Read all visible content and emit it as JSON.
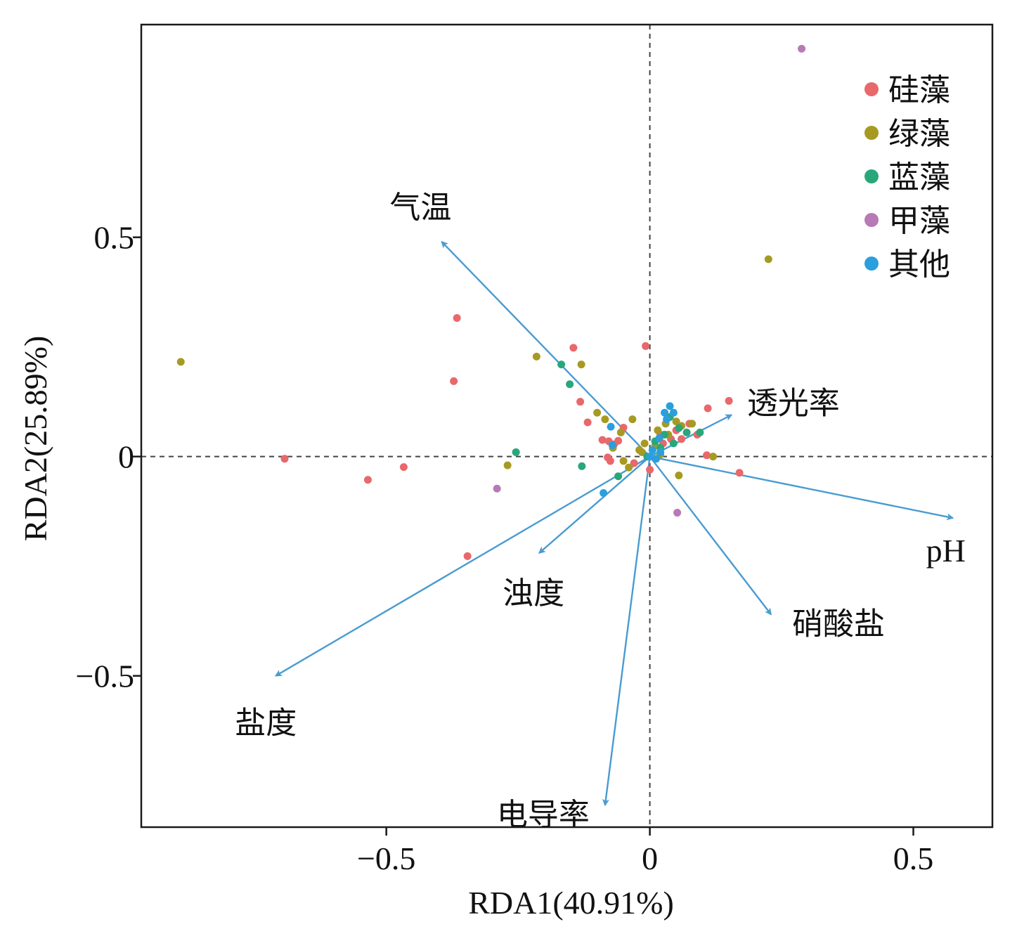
{
  "chart_data": {
    "type": "scatter",
    "xlabel": "RDA1(40.91%)",
    "ylabel": "RDA2(25.89%)",
    "xlim": [
      -0.965,
      0.65
    ],
    "ylim": [
      -0.845,
      0.985
    ],
    "x_ticks": [
      {
        "value": -0.5,
        "label": "−0.5"
      },
      {
        "value": 0,
        "label": "0"
      },
      {
        "value": 0.5,
        "label": "0.5"
      }
    ],
    "y_ticks": [
      {
        "value": 0.5,
        "label": "0.5"
      },
      {
        "value": 0,
        "label": "0"
      },
      {
        "value": -0.5,
        "label": "−0.5"
      }
    ],
    "reference_lines": {
      "x": 0,
      "y": 0,
      "style": "dashed"
    },
    "legend": {
      "placement": "top-right"
    },
    "series": [
      {
        "name": "硅藻",
        "color": "#e8686b",
        "points": [
          [
            -0.693,
            -0.005
          ],
          [
            -0.467,
            -0.024
          ],
          [
            -0.535,
            -0.053
          ],
          [
            -0.366,
            0.316
          ],
          [
            -0.372,
            0.172
          ],
          [
            -0.346,
            -0.227
          ],
          [
            -0.145,
            0.248
          ],
          [
            -0.132,
            0.125
          ],
          [
            -0.118,
            0.078
          ],
          [
            -0.09,
            0.038
          ],
          [
            -0.078,
            0.035
          ],
          [
            -0.068,
            0.028
          ],
          [
            -0.06,
            0.036
          ],
          [
            -0.08,
            -0.002
          ],
          [
            -0.075,
            -0.01
          ],
          [
            -0.05,
            0.066
          ],
          [
            -0.008,
            0.252
          ],
          [
            0.02,
            0.05
          ],
          [
            0.025,
            0.03
          ],
          [
            0.04,
            0.04
          ],
          [
            0.05,
            0.06
          ],
          [
            0.06,
            0.04
          ],
          [
            0.075,
            0.075
          ],
          [
            0.09,
            0.05
          ],
          [
            0.11,
            0.11
          ],
          [
            0.15,
            0.127
          ],
          [
            0.108,
            0.003
          ],
          [
            0.17,
            -0.037
          ],
          [
            -0.03,
            -0.015
          ],
          [
            0.0,
            -0.03
          ]
        ]
      },
      {
        "name": "绿藻",
        "color": "#a69a23",
        "points": [
          [
            -0.89,
            0.216
          ],
          [
            -0.215,
            0.228
          ],
          [
            -0.13,
            0.21
          ],
          [
            -0.1,
            0.1
          ],
          [
            -0.085,
            0.085
          ],
          [
            -0.055,
            0.055
          ],
          [
            -0.07,
            0.02
          ],
          [
            -0.05,
            -0.01
          ],
          [
            -0.033,
            0.085
          ],
          [
            -0.02,
            0.015
          ],
          [
            -0.01,
            0.03
          ],
          [
            0.01,
            0.025
          ],
          [
            0.015,
            0.06
          ],
          [
            0.03,
            0.075
          ],
          [
            0.05,
            0.08
          ],
          [
            0.06,
            0.07
          ],
          [
            0.08,
            0.075
          ],
          [
            0.12,
            0.0
          ],
          [
            0.055,
            -0.043
          ],
          [
            0.225,
            0.45
          ],
          [
            -0.27,
            -0.02
          ],
          [
            -0.04,
            -0.025
          ],
          [
            -0.015,
            0.01
          ],
          [
            0.02,
            0.005
          ],
          [
            0.035,
            0.05
          ]
        ]
      },
      {
        "name": "蓝藻",
        "color": "#2aa77a",
        "points": [
          [
            -0.168,
            0.21
          ],
          [
            -0.152,
            0.165
          ],
          [
            -0.254,
            0.01
          ],
          [
            -0.129,
            -0.022
          ],
          [
            -0.06,
            -0.045
          ],
          [
            0.028,
            0.05
          ],
          [
            0.038,
            0.09
          ],
          [
            0.045,
            0.03
          ],
          [
            0.055,
            0.065
          ],
          [
            0.07,
            0.055
          ],
          [
            0.095,
            0.055
          ],
          [
            0.02,
            0.02
          ],
          [
            0.01,
            0.035
          ],
          [
            -0.005,
            0.0
          ]
        ]
      },
      {
        "name": "甲藻",
        "color": "#b77ab6",
        "points": [
          [
            0.288,
            0.93
          ],
          [
            -0.29,
            -0.073
          ],
          [
            0.052,
            -0.128
          ]
        ]
      },
      {
        "name": "其他",
        "color": "#2b9fdc",
        "points": [
          [
            -0.088,
            -0.083
          ],
          [
            -0.074,
            0.068
          ],
          [
            -0.071,
            0.026
          ],
          [
            0.018,
            0.042
          ],
          [
            0.028,
            0.1
          ],
          [
            0.038,
            0.115
          ],
          [
            0.032,
            0.085
          ],
          [
            0.045,
            0.1
          ],
          [
            0.0,
            0.0
          ],
          [
            0.005,
            0.015
          ],
          [
            0.012,
            -0.005
          ],
          [
            0.02,
            0.01
          ]
        ]
      }
    ],
    "arrows": [
      {
        "label": "气温",
        "x": -0.395,
        "y": 0.49
      },
      {
        "label": "透光率",
        "x": 0.155,
        "y": 0.095
      },
      {
        "label": "pH",
        "x": 0.575,
        "y": -0.14
      },
      {
        "label": "硝酸盐",
        "x": 0.23,
        "y": -0.36
      },
      {
        "label": "浊度",
        "x": -0.21,
        "y": -0.22
      },
      {
        "label": "盐度",
        "x": -0.71,
        "y": -0.5
      },
      {
        "label": "电导率",
        "x": -0.085,
        "y": -0.795
      }
    ],
    "arrow_color": "#4a9bd1"
  }
}
